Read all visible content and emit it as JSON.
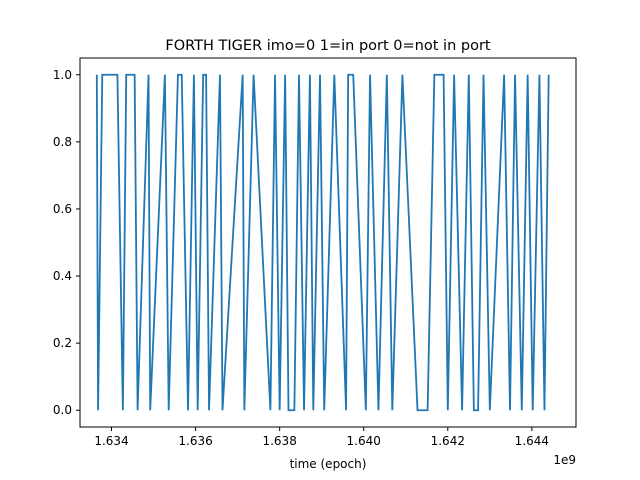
{
  "chart_data": {
    "type": "line",
    "title": "FORTH TIGER imo=0 1=in port 0=not in port",
    "xlabel": "time (epoch)",
    "ylabel": "",
    "x_offset_label": "1e9",
    "xlim": [
      1.63325,
      1.64505
    ],
    "ylim": [
      -0.05,
      1.05
    ],
    "x_ticks": [
      1.634,
      1.636,
      1.638,
      1.64,
      1.642,
      1.644
    ],
    "x_tick_labels": [
      "1.634",
      "1.636",
      "1.638",
      "1.640",
      "1.642",
      "1.644"
    ],
    "y_ticks": [
      0.0,
      0.2,
      0.4,
      0.6,
      0.8,
      1.0
    ],
    "y_tick_labels": [
      "0.0",
      "0.2",
      "0.4",
      "0.6",
      "0.8",
      "1.0"
    ],
    "grid": false,
    "line_color": "#1f77b4",
    "series": [
      {
        "x": [
          1.63365,
          1.63368,
          1.63378,
          1.63396,
          1.63414,
          1.63427,
          1.63435,
          1.63455,
          1.63462,
          1.63488,
          1.63492,
          1.63527,
          1.63536,
          1.63558,
          1.63567,
          1.63582,
          1.63596,
          1.63605,
          1.63618,
          1.63625,
          1.63632,
          1.63658,
          1.63664,
          1.63712,
          1.63716,
          1.63738,
          1.63778,
          1.63789,
          1.638,
          1.63813,
          1.63821,
          1.63835,
          1.63846,
          1.63858,
          1.63872,
          1.6388,
          1.63896,
          1.63906,
          1.6393,
          1.63958,
          1.63963,
          1.63975,
          1.64005,
          1.64015,
          1.64035,
          1.64055,
          1.64068,
          1.64092,
          1.64128,
          1.64152,
          1.64168,
          1.6419,
          1.642,
          1.64215,
          1.64234,
          1.6425,
          1.64262,
          1.64272,
          1.64285,
          1.643,
          1.64334,
          1.64348,
          1.6436,
          1.64376,
          1.6439,
          1.64402,
          1.64418,
          1.6443,
          1.6444
        ],
        "y": [
          1,
          0,
          1,
          1,
          1,
          0,
          1,
          1,
          0,
          1,
          0,
          1,
          0,
          1,
          1,
          0,
          1,
          0,
          1,
          1,
          0,
          1,
          0,
          1,
          0,
          1,
          0,
          1,
          0,
          1,
          0,
          0,
          1,
          0,
          1,
          0,
          1,
          0,
          1,
          0,
          1,
          1,
          0,
          1,
          0,
          1,
          0,
          1,
          0,
          0,
          1,
          1,
          0,
          1,
          0,
          1,
          0,
          0,
          1,
          0,
          1,
          0,
          1,
          0,
          1,
          0,
          1,
          0,
          1
        ]
      }
    ]
  }
}
